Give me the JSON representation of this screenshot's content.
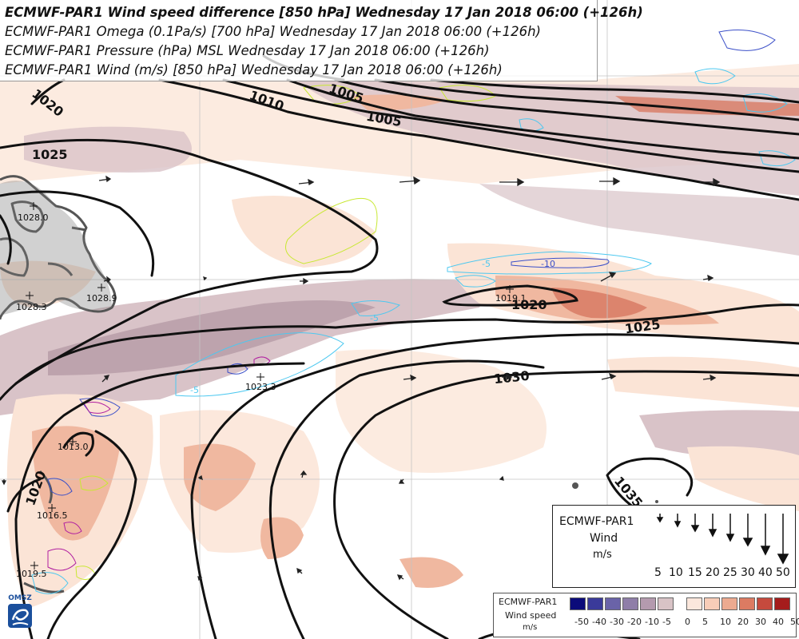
{
  "titles": [
    "ECMWF-PAR1 Wind speed difference  [850 hPa] Wednesday 17 Jan 2018 06:00 (+126h)",
    "ECMWF-PAR1 Omega (0.1Pa/s) [700 hPa] Wednesday 17 Jan 2018 06:00 (+126h)",
    "ECMWF-PAR1 Pressure (hPa) MSL Wednesday 17 Jan 2018 06:00 (+126h)",
    "ECMWF-PAR1 Wind (m/s) [850 hPa] Wednesday 17 Jan 2018 06:00 (+126h)"
  ],
  "isobar_labels": [
    "1020",
    "1025",
    "1010",
    "1005",
    "1020",
    "1025",
    "1030",
    "1020",
    "1035",
    "1005"
  ],
  "omega_labels": [
    "-5",
    "-10",
    "-5",
    "-5"
  ],
  "pressure_centres": [
    {
      "label": "1028.0"
    },
    {
      "label": "1028.3"
    },
    {
      "label": "1028.9"
    },
    {
      "label": "1019.1"
    },
    {
      "label": "1023.3"
    },
    {
      "label": "1013.0"
    },
    {
      "label": "1016.5"
    },
    {
      "label": "1019.5"
    }
  ],
  "wind_legend": {
    "model": "ECMWF-PAR1",
    "variable": "Wind",
    "unit": "m/s",
    "speeds": [
      "5",
      "10",
      "15",
      "20",
      "25",
      "30",
      "40",
      "50"
    ]
  },
  "speed_scale": {
    "model": "ECMWF-PAR1",
    "variable": "Wind speed",
    "unit": "m/s",
    "labels": [
      "-50",
      "-40",
      "-30",
      "-20",
      "-10",
      "-5",
      "0",
      "5",
      "10",
      "20",
      "30",
      "40",
      "50"
    ],
    "negative_colors": [
      "#0b0b7a",
      "#3a3a9a",
      "#6a63a8",
      "#8f7ea8",
      "#b49aae",
      "#d8c3c6"
    ],
    "positive_colors": [
      "#fbe7dc",
      "#f7cdb8",
      "#ecaa90",
      "#dc7b62",
      "#c64a3d",
      "#a51c1c"
    ]
  },
  "logo": {
    "text": "OMSZ"
  },
  "colors": {
    "positive_light": "#fbe4d6",
    "positive_mid": "#f0b8a0",
    "positive_strong": "#d87a64",
    "negative_light": "#d9c3c8",
    "negative_mid": "#b9a0aa",
    "land": "#5a5a5a",
    "omega_light": "#4cc8f0",
    "omega_mid": "#3b4fc8",
    "omega_strong": "#b01ea0",
    "omega_rise": "#c8e832"
  }
}
